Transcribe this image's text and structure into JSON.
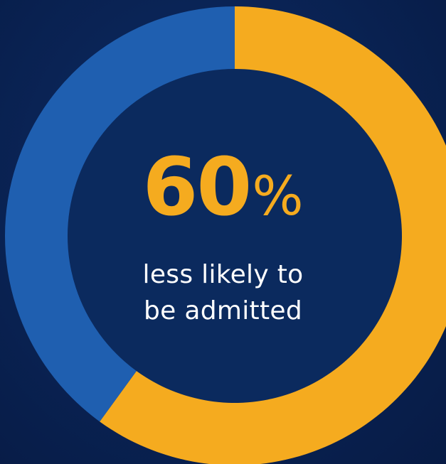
{
  "headline": {
    "value": "60",
    "unit": "%"
  },
  "caption": {
    "line1": "less likely to",
    "line2": "be admitted"
  },
  "chart_data": {
    "type": "pie",
    "donut": true,
    "slices": [
      {
        "value": 60,
        "color": "#f5ab1f"
      },
      {
        "value": 40,
        "color": "#1f5fb0"
      }
    ],
    "start_angle_deg": 0,
    "direction": "clockwise"
  }
}
